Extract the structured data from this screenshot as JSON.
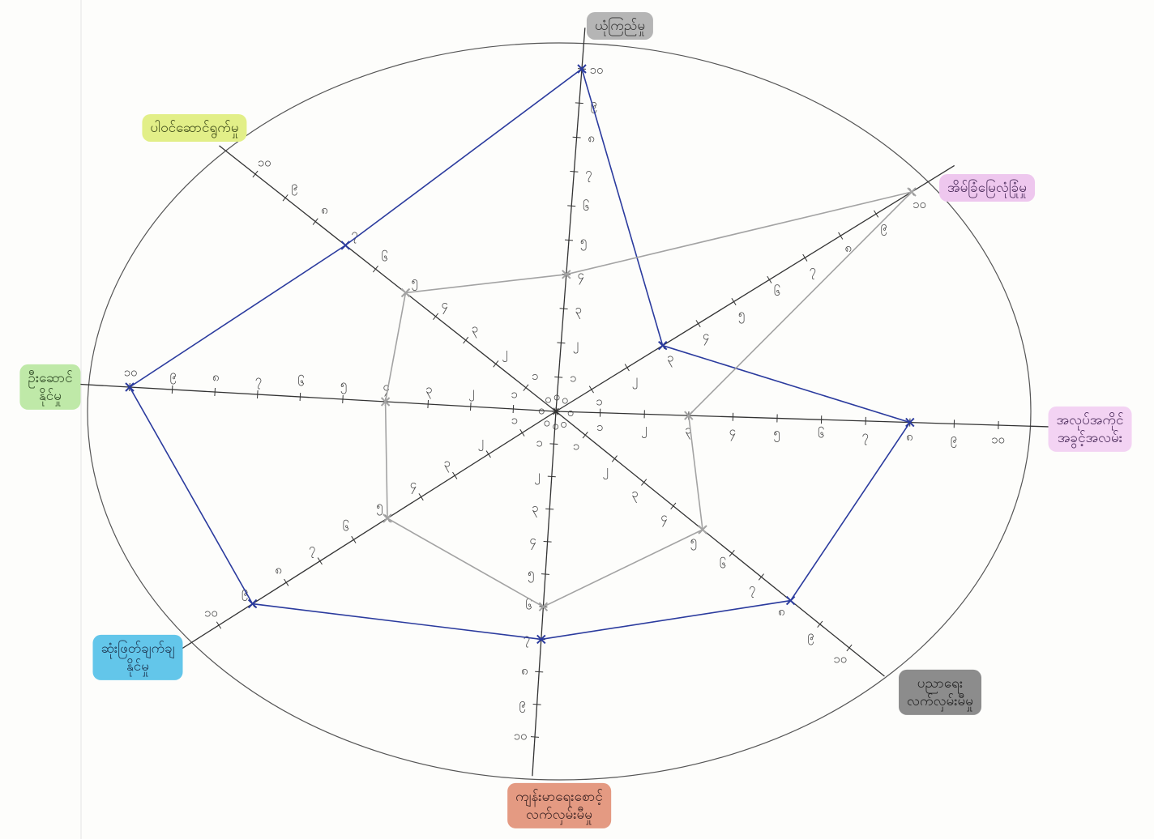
{
  "chart_data": {
    "type": "radar",
    "axes": [
      "ယုံကြည်မှု",
      "အိမ်ခြံမြေလုံခြုံမှု",
      "အလုပ်အကိုင်\nအခွင့်အလမ်း",
      "ပညာရေး\nလက်လှမ်းမီမှု",
      "ကျန်းမာရေးစောင့်\nလက်လှမ်းမီမှု",
      "ဆုံးဖြတ်ချက်ချ\nနိုင်မှု",
      "ဦးဆောင်\nနိုင်မှု",
      "ပါဝင်ဆောင်ရွက်မှု"
    ],
    "series": [
      {
        "color": "#2b3b9e",
        "values": [
          10,
          3,
          8,
          8,
          7,
          9,
          10,
          7
        ]
      },
      {
        "color": "#a3a3a3",
        "values": [
          4,
          10,
          3,
          5,
          6,
          5,
          4,
          5
        ]
      }
    ],
    "rlim": [
      0,
      10
    ],
    "rticks": [
      {
        "value": 0,
        "label": "၀"
      },
      {
        "value": 1,
        "label": "၁"
      },
      {
        "value": 2,
        "label": "၂"
      },
      {
        "value": 3,
        "label": "၃"
      },
      {
        "value": 4,
        "label": "၄"
      },
      {
        "value": 5,
        "label": "၅"
      },
      {
        "value": 6,
        "label": "၆"
      },
      {
        "value": 7,
        "label": "၇"
      },
      {
        "value": 8,
        "label": "၈"
      },
      {
        "value": 9,
        "label": "၉"
      },
      {
        "value": 10,
        "label": "၁၀"
      }
    ]
  }
}
